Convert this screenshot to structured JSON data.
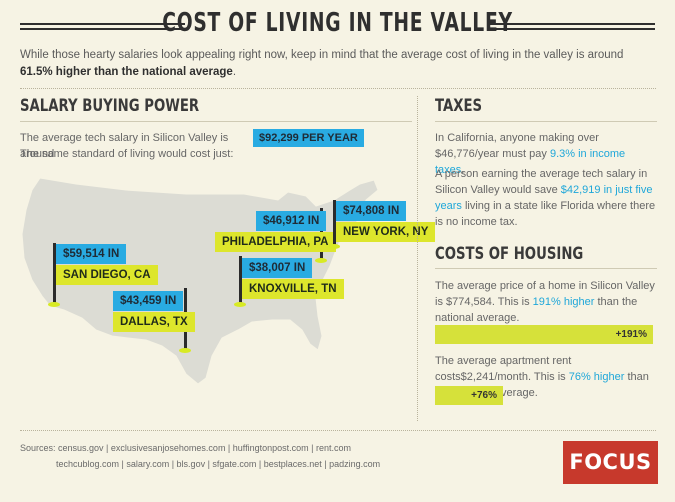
{
  "header": {
    "title": "COST OF LIVING IN THE VALLEY",
    "intro_text": "While those hearty salaries look appealing right now, keep in mind that the average cost of living in the valley is around",
    "intro_highlight": "61.5% higher than the national average",
    "intro_end": "."
  },
  "salary": {
    "heading": "SALARY BUYING POWER",
    "line1": "The average tech salary in Silicon Valley is around",
    "salary_tag": "$92,299 PER YEAR",
    "line2": "The same standard of living would cost just:"
  },
  "cities": [
    {
      "amount": "$59,514 IN",
      "city": "SAN DIEGO, CA"
    },
    {
      "amount": "$43,459 IN",
      "city": "DALLAS, TX"
    },
    {
      "amount": "$46,912 IN",
      "city": "PHILADELPHIA, PA"
    },
    {
      "amount": "$74,808 IN",
      "city": "NEW YORK, NY"
    },
    {
      "amount": "$38,007 IN",
      "city": "KNOXVILLE, TN"
    }
  ],
  "taxes": {
    "heading": "TAXES",
    "p1_start": "In California, anyone making over $46,776/year must pay",
    "p1_highlight": "9.3% in income taxes",
    "p1_end": ".",
    "p2_start": "A person earning the average tech salary in Silicon Valley would save",
    "p2_highlight": "$42,919 in just five years",
    "p2_end": "living in a state like Florida where there is no income tax."
  },
  "housing": {
    "heading": "COSTS OF HOUSING",
    "p1_start": "The average price of a home in Silicon Valley is $774,584. This is",
    "p1_highlight": "191% higher",
    "p1_end": "than the national average.",
    "bar1_label": "+191%",
    "bar1_value": 191,
    "p2_start": "The average apartment rent costs$2,241/month. This is",
    "p2_highlight": "76% higher",
    "p2_end": "than the national average.",
    "bar2_label": "+76%",
    "bar2_value": 76
  },
  "sources": {
    "line1": "Sources: census.gov | exclusivesanjosehomes.com | huffingtonpost.com | rent.com",
    "line2": "techcublog.com | salary.com | bls.gov | sfgate.com | bestplaces.net | padzing.com"
  },
  "brand": {
    "logo": "FOCUS"
  },
  "colors": {
    "background": "#f6f3e4",
    "blue": "#29abe2",
    "yellow": "#dde62c",
    "brand_red": "#c7392c"
  }
}
